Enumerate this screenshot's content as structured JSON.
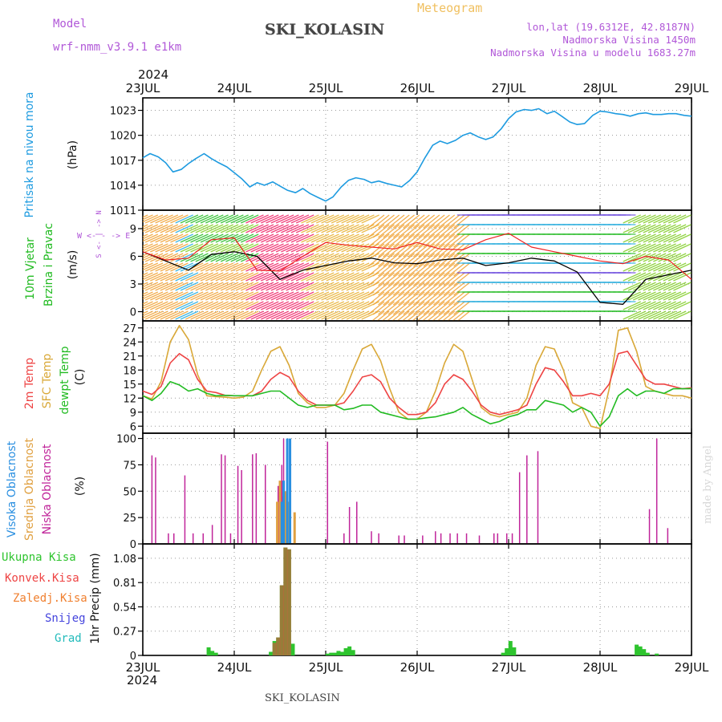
{
  "header": {
    "model_label": "Model",
    "model_name": "wrf-nmm_v3.9.1 e1km",
    "station": "SKI_KOLASIN",
    "product": "Meteogram",
    "lonlat": "lon,lat (19.6312E, 42.8187N)",
    "elevation": "Nadmorska Visina 1450m",
    "model_elevation": "Nadmorska Visina u modelu 1683.27m",
    "year": "2024",
    "footer_station": "SKI_KOLASIN",
    "watermark": "made by Angel"
  },
  "colors": {
    "pressure": "#1e9be0",
    "temp2m": "#ee4444",
    "sfc": "#d9a838",
    "dew": "#22bb22",
    "high_cloud": "#2a8fe0",
    "mid_cloud": "#e0a040",
    "low_cloud": "#c0249a",
    "precip_total": "#2ec42e",
    "precip_conv": "#ee4444",
    "precip_frz": "#f08030",
    "snow": "#4444dd",
    "hail": "#22bbbb",
    "wind_speed": "#000000",
    "gust": "#ee2222"
  },
  "chart_data": [
    {
      "type": "line",
      "title": "",
      "ylabel_lines": [
        "Pritisak na nivou mora",
        "(hPa)"
      ],
      "x_ticks": [
        "23JUL",
        "24JUL",
        "25JUL",
        "26JUL",
        "27JUL",
        "28JUL",
        "29JUL"
      ],
      "ylim": [
        1011,
        1024.5
      ],
      "yticks": [
        "1011",
        "1014",
        "1017",
        "1020",
        "1023"
      ],
      "grid": true,
      "series": [
        {
          "x": [
            0,
            0.08,
            0.17,
            0.25,
            0.33,
            0.42,
            0.5,
            0.58,
            0.67,
            0.75,
            0.83,
            0.92,
            1.0,
            1.08,
            1.17,
            1.25,
            1.33,
            1.42,
            1.5,
            1.58,
            1.67,
            1.75,
            1.83,
            1.92,
            2.0,
            2.08,
            2.17,
            2.25,
            2.33,
            2.42,
            2.5,
            2.58,
            2.67,
            2.75,
            2.83,
            2.92,
            3.0,
            3.08,
            3.17,
            3.25,
            3.33,
            3.42,
            3.5,
            3.58,
            3.67,
            3.75,
            3.83,
            3.92,
            4.0,
            4.08,
            4.17,
            4.25,
            4.33,
            4.42,
            4.5,
            4.58,
            4.67,
            4.75,
            4.83,
            4.92,
            5.0,
            5.08,
            5.17,
            5.25,
            5.33,
            5.42,
            5.5,
            5.58,
            5.67,
            5.75,
            5.83,
            5.92,
            6.0
          ],
          "y": [
            1017.3,
            1017.8,
            1017.4,
            1016.7,
            1015.6,
            1015.9,
            1016.6,
            1017.2,
            1017.8,
            1017.2,
            1016.7,
            1016.2,
            1015.5,
            1014.8,
            1013.8,
            1014.3,
            1014.0,
            1014.4,
            1013.9,
            1013.4,
            1013.1,
            1013.6,
            1013.0,
            1012.5,
            1012.1,
            1012.6,
            1013.8,
            1014.6,
            1014.9,
            1014.7,
            1014.3,
            1014.5,
            1014.2,
            1014.0,
            1013.8,
            1014.6,
            1015.6,
            1017.2,
            1018.8,
            1019.3,
            1019.0,
            1019.4,
            1020.0,
            1020.3,
            1019.8,
            1019.5,
            1019.8,
            1020.8,
            1022.0,
            1022.8,
            1023.1,
            1023.0,
            1023.2,
            1022.6,
            1022.9,
            1022.3,
            1021.6,
            1021.3,
            1021.4,
            1022.4,
            1022.9,
            1022.8,
            1022.6,
            1022.5,
            1022.3,
            1022.6,
            1022.7,
            1022.5,
            1022.5,
            1022.6,
            1022.6,
            1022.4,
            1022.3
          ],
          "name": ""
        }
      ]
    },
    {
      "type": "line",
      "ylabel_lines": [
        "10m Vjetar",
        "Brzina i Pravac",
        "(m/s)"
      ],
      "compass_note": "W <- - -> E",
      "ylim": [
        -1,
        11
      ],
      "yticks": [
        "0",
        "3",
        "6",
        "9"
      ],
      "grid": true,
      "series": [
        {
          "name": "",
          "x": [
            0,
            0.25,
            0.5,
            0.75,
            1.0,
            1.25,
            1.5,
            1.75,
            2.0,
            2.25,
            2.5,
            2.75,
            3.0,
            3.25,
            3.5,
            3.75,
            4.0,
            4.25,
            4.5,
            4.75,
            5.0,
            5.25,
            5.5,
            5.75,
            6.0
          ],
          "y": [
            6.5,
            5.5,
            4.5,
            6.2,
            6.5,
            6.0,
            3.5,
            4.5,
            5.0,
            5.5,
            5.8,
            5.3,
            5.2,
            5.6,
            5.8,
            5.0,
            5.3,
            5.8,
            5.5,
            4.3,
            1.0,
            0.8,
            3.5,
            4.0,
            4.5
          ]
        },
        {
          "name": "",
          "x": [
            0,
            0.25,
            0.5,
            0.75,
            1.0,
            1.25,
            1.5,
            1.75,
            2.0,
            2.25,
            2.5,
            2.75,
            3.0,
            3.25,
            3.5,
            3.75,
            4.0,
            4.25,
            4.5,
            4.75,
            5.0,
            5.25,
            5.5,
            5.75,
            6.0
          ],
          "y": [
            6.5,
            5.6,
            5.8,
            7.8,
            8.0,
            4.5,
            4.4,
            6.0,
            7.5,
            7.2,
            7.0,
            6.8,
            7.5,
            6.8,
            6.7,
            7.8,
            8.5,
            7.0,
            6.5,
            6.0,
            5.5,
            5.2,
            6.0,
            5.6,
            3.5
          ]
        }
      ]
    },
    {
      "type": "line",
      "ylabel_lines": [
        "2m Temp",
        "SFC Temp",
        "dewpt Temp",
        "(C)"
      ],
      "ylim": [
        4.5,
        28.5
      ],
      "yticks": [
        "6",
        "9",
        "12",
        "15",
        "18",
        "21",
        "24",
        "27"
      ],
      "grid": true,
      "x": [
        0,
        0.1,
        0.2,
        0.3,
        0.4,
        0.5,
        0.6,
        0.7,
        0.8,
        0.9,
        1.0,
        1.1,
        1.2,
        1.3,
        1.4,
        1.5,
        1.6,
        1.7,
        1.8,
        1.9,
        2.0,
        2.1,
        2.2,
        2.3,
        2.4,
        2.5,
        2.6,
        2.7,
        2.8,
        2.9,
        3.0,
        3.1,
        3.2,
        3.3,
        3.4,
        3.5,
        3.6,
        3.7,
        3.8,
        3.9,
        4.0,
        4.1,
        4.2,
        4.3,
        4.4,
        4.5,
        4.6,
        4.7,
        4.8,
        4.9,
        5.0,
        5.1,
        5.2,
        5.3,
        5.4,
        5.5,
        5.6,
        5.7,
        5.8,
        5.9,
        6.0
      ],
      "series": [
        {
          "name": "",
          "y": [
            13.5,
            12.8,
            14.5,
            19.5,
            21.5,
            20.2,
            16.0,
            13.5,
            13.2,
            12.6,
            12.5,
            12.5,
            12.5,
            13.5,
            16.0,
            17.5,
            16.5,
            13.5,
            11.5,
            10.5,
            10.5,
            10.5,
            11.0,
            13.5,
            16.5,
            17.0,
            15.5,
            12.0,
            10.0,
            8.5,
            8.5,
            9.0,
            11.0,
            15.0,
            17.0,
            16.0,
            13.5,
            10.5,
            9.0,
            8.5,
            9.0,
            9.5,
            10.5,
            15.0,
            18.5,
            18.0,
            15.5,
            12.5,
            12.5,
            13.0,
            12.5,
            15.0,
            21.5,
            22.0,
            19.0,
            16.0,
            15.0,
            15.0,
            14.5,
            14.0,
            14.2
          ]
        },
        {
          "name": "",
          "y": [
            12.5,
            11.8,
            15.5,
            24.0,
            27.5,
            24.5,
            17.0,
            12.5,
            12.3,
            12.2,
            12.0,
            12.2,
            13.5,
            18.0,
            22.0,
            23.0,
            19.0,
            13.0,
            11.0,
            10.0,
            10.0,
            10.5,
            13.0,
            18.0,
            22.5,
            23.5,
            20.0,
            14.0,
            9.0,
            7.5,
            7.5,
            9.0,
            13.5,
            19.5,
            23.5,
            22.0,
            16.0,
            10.0,
            8.5,
            8.0,
            8.5,
            9.0,
            12.0,
            19.0,
            23.0,
            22.5,
            18.0,
            11.0,
            10.0,
            6.0,
            5.5,
            14.0,
            26.5,
            27.0,
            22.0,
            14.5,
            13.5,
            13.0,
            12.5,
            12.5,
            12.0
          ]
        },
        {
          "name": "",
          "y": [
            12.5,
            11.5,
            13.0,
            15.5,
            14.8,
            13.5,
            14.0,
            13.0,
            12.5,
            12.6,
            12.5,
            12.5,
            12.5,
            13.0,
            13.5,
            13.5,
            12.0,
            10.5,
            10.0,
            10.5,
            10.5,
            10.5,
            9.5,
            9.8,
            10.5,
            10.5,
            9.0,
            8.5,
            8.0,
            7.5,
            7.5,
            7.8,
            8.0,
            8.5,
            9.0,
            10.0,
            8.5,
            7.5,
            6.5,
            7.0,
            8.0,
            8.5,
            9.5,
            9.5,
            11.5,
            11.0,
            10.5,
            9.0,
            10.0,
            9.0,
            6.0,
            8.0,
            12.5,
            14.0,
            12.5,
            13.5,
            13.5,
            13.0,
            14.0,
            14.0,
            14.0
          ]
        }
      ]
    },
    {
      "type": "bar",
      "ylabel_lines": [
        "Visoka Oblacnost",
        "Srednja Oblacnost",
        "Niska Oblacnost",
        "(%)"
      ],
      "ylim": [
        0,
        105
      ],
      "yticks": [
        "0",
        "25",
        "50",
        "75",
        "100"
      ],
      "grid": true,
      "series": [
        {
          "name": "",
          "x": [
            1.52,
            1.54,
            1.58,
            1.61
          ],
          "values": [
            40,
            60,
            100,
            100
          ]
        },
        {
          "name": "",
          "x": [
            1.47,
            1.5,
            1.54,
            1.56,
            1.59,
            1.66
          ],
          "values": [
            40,
            60,
            45,
            50,
            40,
            30
          ]
        },
        {
          "name": "",
          "x": [
            0.1,
            0.14,
            0.28,
            0.34,
            0.46,
            0.55,
            0.66,
            0.76,
            0.86,
            0.9,
            0.96,
            1.04,
            1.08,
            1.2,
            1.24,
            1.34,
            1.48,
            1.52,
            1.54,
            1.58,
            2.02,
            2.2,
            2.26,
            2.34,
            2.5,
            2.58,
            2.8,
            2.86,
            3.06,
            3.2,
            3.26,
            3.36,
            3.44,
            3.54,
            3.68,
            3.84,
            3.88,
            3.98,
            4.04,
            4.12,
            4.2,
            4.32,
            4.36,
            4.42,
            5.54,
            5.62,
            5.74
          ],
          "values": [
            84,
            82,
            10,
            10,
            65,
            10,
            10,
            18,
            85,
            84,
            10,
            74,
            70,
            85,
            86,
            75,
            55,
            75,
            100,
            75,
            97,
            10,
            35,
            40,
            12,
            10,
            8,
            8,
            8,
            12,
            10,
            10,
            10,
            10,
            8,
            10,
            10,
            10,
            10,
            68,
            84,
            88,
            0,
            0,
            33,
            100,
            15
          ]
        }
      ]
    },
    {
      "type": "bar",
      "ylabel_lines": [
        "1hr Precip (mm)"
      ],
      "legend_lines": [
        "Ukupna Kisa",
        "Konvek.Kisa",
        "Zaledj.Kisa",
        "Snijeg",
        "Grad"
      ],
      "ylim": [
        0,
        1.24
      ],
      "yticks": [
        "0",
        "0.27",
        "0.54",
        "0.81",
        "1.08"
      ],
      "grid": true,
      "x_ticks": [
        "23JUL",
        "24JUL",
        "25JUL",
        "26JUL",
        "27JUL",
        "28JUL",
        "29JUL"
      ],
      "series": [
        {
          "name": "",
          "x": [
            0.72,
            0.76,
            0.8,
            1.4,
            1.44,
            1.48,
            1.52,
            1.56,
            1.6,
            1.64,
            2.02,
            2.06,
            2.1,
            2.14,
            2.18,
            2.22,
            2.26,
            2.3,
            3.94,
            3.98,
            4.02,
            4.06,
            5.4,
            5.44,
            5.48,
            5.52,
            5.62
          ],
          "values": [
            0.09,
            0.05,
            0.03,
            0.04,
            0.16,
            0.2,
            0.78,
            1.2,
            1.18,
            0.13,
            0.02,
            0.03,
            0.03,
            0.05,
            0.04,
            0.08,
            0.1,
            0.06,
            0.03,
            0.08,
            0.16,
            0.09,
            0.12,
            0.1,
            0.07,
            0.03,
            0.02
          ]
        },
        {
          "name": "",
          "x": [
            1.44,
            1.48,
            1.52,
            1.56,
            1.6
          ],
          "values": [
            0.14,
            0.2,
            0.78,
            1.2,
            1.18
          ]
        }
      ]
    }
  ]
}
